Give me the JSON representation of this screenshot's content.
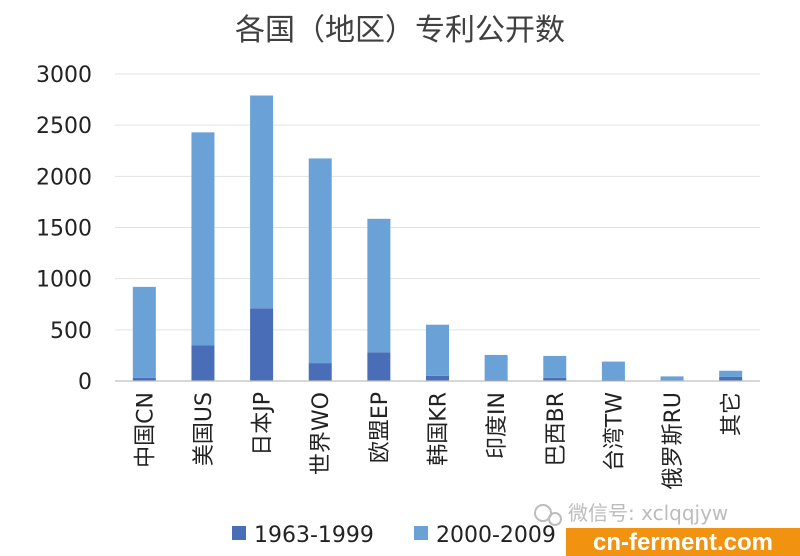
{
  "chart_data": {
    "type": "bar",
    "stacked": true,
    "title": "各国（地区）专利公开数",
    "categories": [
      "中国CN",
      "美国US",
      "日本JP",
      "世界WO",
      "欧盟EP",
      "韩国KR",
      "印度IN",
      "巴西BR",
      "台湾TW",
      "俄罗斯RU",
      "其它"
    ],
    "series": [
      {
        "name": "1963-1999",
        "color": "#4a6db8",
        "values": [
          30,
          350,
          710,
          175,
          280,
          50,
          10,
          30,
          10,
          5,
          40
        ]
      },
      {
        "name": "2000-2009",
        "color": "#6aa2d8",
        "values": [
          890,
          2080,
          2080,
          2000,
          1305,
          500,
          245,
          215,
          180,
          40,
          60
        ]
      }
    ],
    "ylim": [
      0,
      3000
    ],
    "yticks": [
      0,
      500,
      1000,
      1500,
      2000,
      2500,
      3000
    ],
    "grid": true,
    "legend_position": "bottom"
  },
  "watermark": {
    "wechat_text": "微信号: xclqqjyw",
    "brand_text": "cn-ferment.com"
  }
}
